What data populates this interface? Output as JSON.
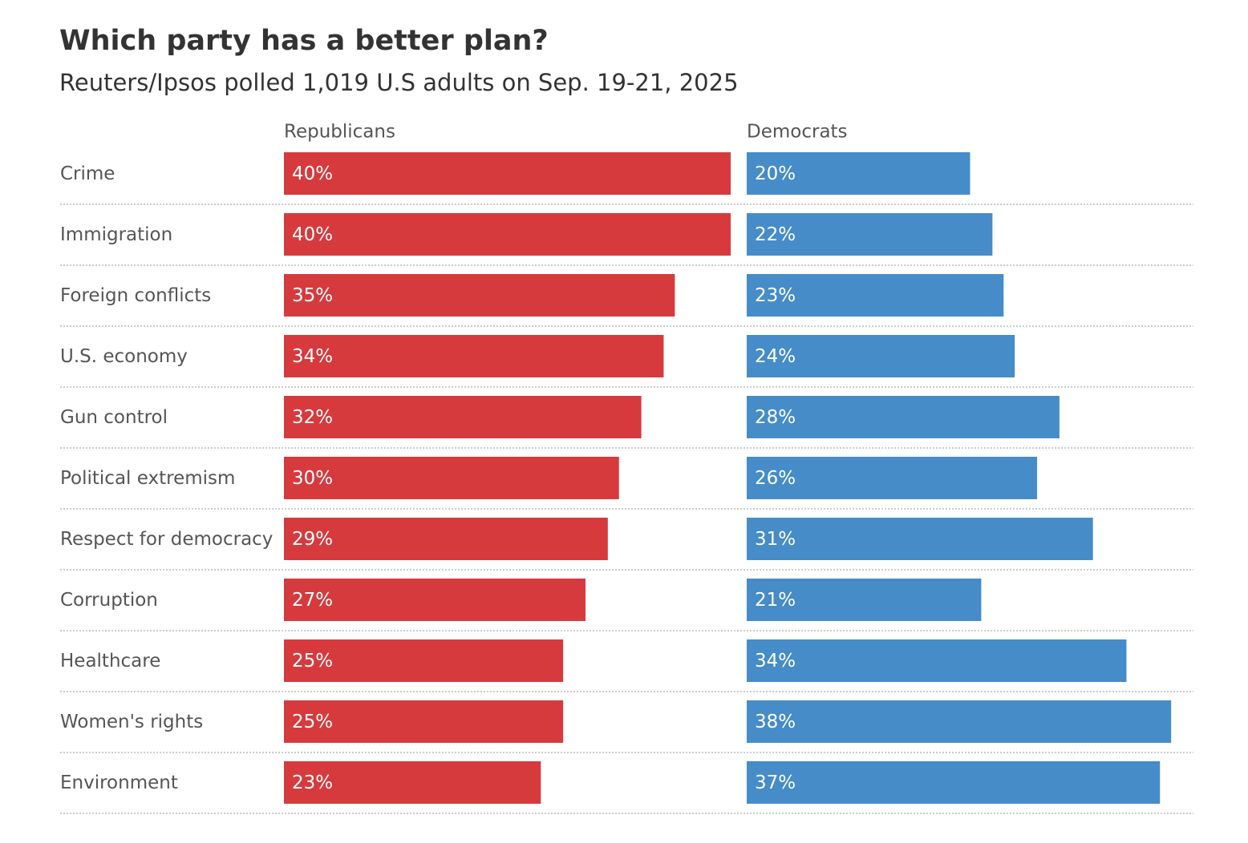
{
  "chart_data": {
    "type": "bar",
    "title": "Which party has a better plan?",
    "subtitle": "Reuters/Ipsos polled 1,019 U.S adults on Sep. 19-21, 2025",
    "categories": [
      "Crime",
      "Immigration",
      "Foreign conflicts",
      "U.S. economy",
      "Gun control",
      "Political extremism",
      "Respect for democracy",
      "Corruption",
      "Healthcare",
      "Women's rights",
      "Environment"
    ],
    "series": [
      {
        "name": "Republicans",
        "color": "#d63a3d",
        "values": [
          40,
          40,
          35,
          34,
          32,
          30,
          29,
          27,
          25,
          25,
          23
        ],
        "value_labels": [
          "40%",
          "40%",
          "35%",
          "34%",
          "32%",
          "30%",
          "29%",
          "27%",
          "25%",
          "25%",
          "23%"
        ]
      },
      {
        "name": "Democrats",
        "color": "#458cc8",
        "values": [
          20,
          22,
          23,
          24,
          28,
          26,
          31,
          21,
          34,
          38,
          37
        ],
        "value_labels": [
          "20%",
          "22%",
          "23%",
          "24%",
          "28%",
          "26%",
          "31%",
          "21%",
          "34%",
          "38%",
          "37%"
        ]
      }
    ]
  }
}
